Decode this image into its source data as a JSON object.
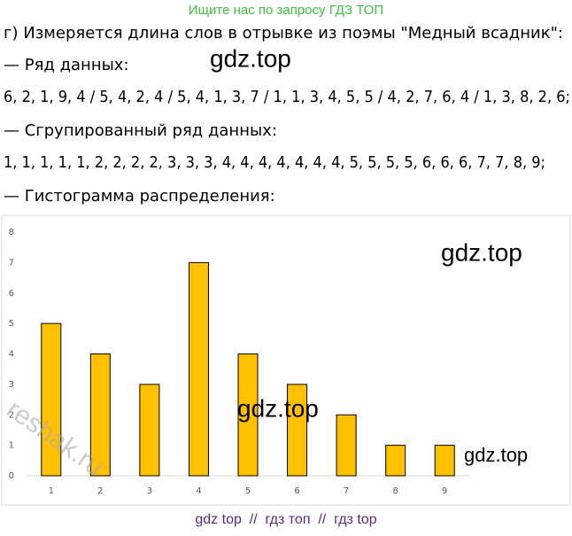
{
  "header": "Ищите нас по запросу ГДЗ ТОП",
  "lines": [
    "г) Измеряется длина слов в отрывке из поэмы \"Медный всадник\":",
    "— Ряд данных:",
    "6, 2, 1, 9, 4 / 5, 4, 2, 4 / 5, 4, 1, 3, 7 / 1, 1, 3, 4, 5, 5 / 4, 2, 7, 6, 4 / 1, 3, 8, 2, 6;",
    "— Сгрупированный ряд данных:",
    "1, 1, 1, 1, 1, 2, 2, 2, 2, 3, 3, 3, 4, 4, 4, 4, 4, 4, 4, 5, 5, 5, 5, 6, 6, 6, 7, 7, 8, 9;",
    "— Гистограмма распределения:"
  ],
  "chart_data": {
    "type": "bar",
    "categories": [
      1,
      2,
      3,
      4,
      5,
      6,
      7,
      8,
      9
    ],
    "values": [
      5,
      4,
      3,
      7,
      4,
      3,
      2,
      1,
      1
    ],
    "color": "#ffc000",
    "ylim": [
      0,
      8
    ],
    "yticks": [
      0,
      1,
      2,
      3,
      4,
      5,
      6,
      7,
      8
    ],
    "grid": false
  },
  "watermarks": [
    "gdz.top",
    "gdz.top",
    "gdz.top",
    "gdz.top",
    "reshak.ru"
  ],
  "footer": "gdz top  //  гдз топ  //  гдз top"
}
